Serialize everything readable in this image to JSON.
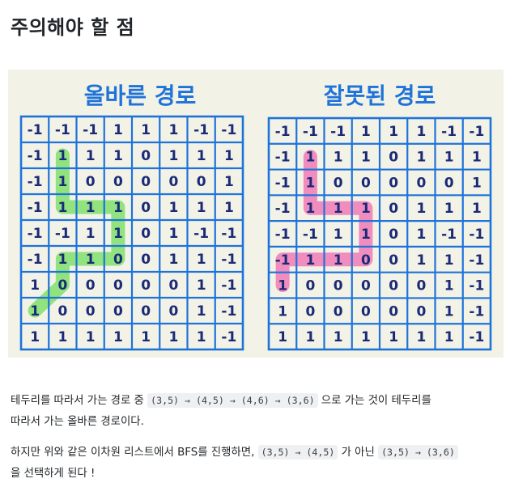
{
  "page": {
    "title": "주의해야 할 점"
  },
  "figure": {
    "left_title": "올바른 경로",
    "right_title": "잘못된 경로",
    "colors": {
      "background": "#f3f2e7",
      "grid": "#1e73d9",
      "digits": "#1a2a78",
      "correct_path": "#7ee06b",
      "wrong_path": "#ef7ab6"
    },
    "grid": [
      [
        "-1",
        "-1",
        "-1",
        "1",
        "1",
        "1",
        "-1",
        "-1"
      ],
      [
        "-1",
        "1",
        "1",
        "1",
        "0",
        "1",
        "1",
        "1"
      ],
      [
        "-1",
        "1",
        "0",
        "0",
        "0",
        "0",
        "0",
        "1"
      ],
      [
        "-1",
        "1",
        "1",
        "1",
        "0",
        "1",
        "1",
        "1"
      ],
      [
        "-1",
        "-1",
        "1",
        "1",
        "0",
        "1",
        "-1",
        "-1"
      ],
      [
        "-1",
        "1",
        "1",
        "0",
        "0",
        "1",
        "1",
        "-1"
      ],
      [
        "1",
        "0",
        "0",
        "0",
        "0",
        "0",
        "1",
        "-1"
      ],
      [
        "1",
        "0",
        "0",
        "0",
        "0",
        "0",
        "1",
        "-1"
      ],
      [
        "1",
        "1",
        "1",
        "1",
        "1",
        "1",
        "1",
        "-1"
      ]
    ],
    "correct_path": [
      [
        1,
        1
      ],
      [
        3,
        1
      ],
      [
        3,
        3
      ],
      [
        5,
        3
      ],
      [
        5,
        1
      ],
      [
        6,
        1
      ],
      [
        7,
        0
      ]
    ],
    "wrong_path": [
      [
        1,
        1
      ],
      [
        3,
        1
      ],
      [
        3,
        3
      ],
      [
        5,
        3
      ],
      [
        5,
        0
      ],
      [
        6,
        0
      ]
    ]
  },
  "text": {
    "p1_a": "테두리를 따라서 가는 경로 중 ",
    "p1_code": "(3,5) → (4,5) → (4,6) → (3,6)",
    "p1_b": " 으로 가는 것이 테두리를",
    "p1_c": "따라서 가는 올바른 경로이다.",
    "p2_a": "하지만 위와 같은 이차원 리스트에서 BFS를 진행하면, ",
    "p2_code1": "(3,5) → (4,5)",
    "p2_b": " 가 아닌 ",
    "p2_code2": "(3,5) → (3,6)",
    "p2_c": "을 선택하게 된다 !"
  }
}
